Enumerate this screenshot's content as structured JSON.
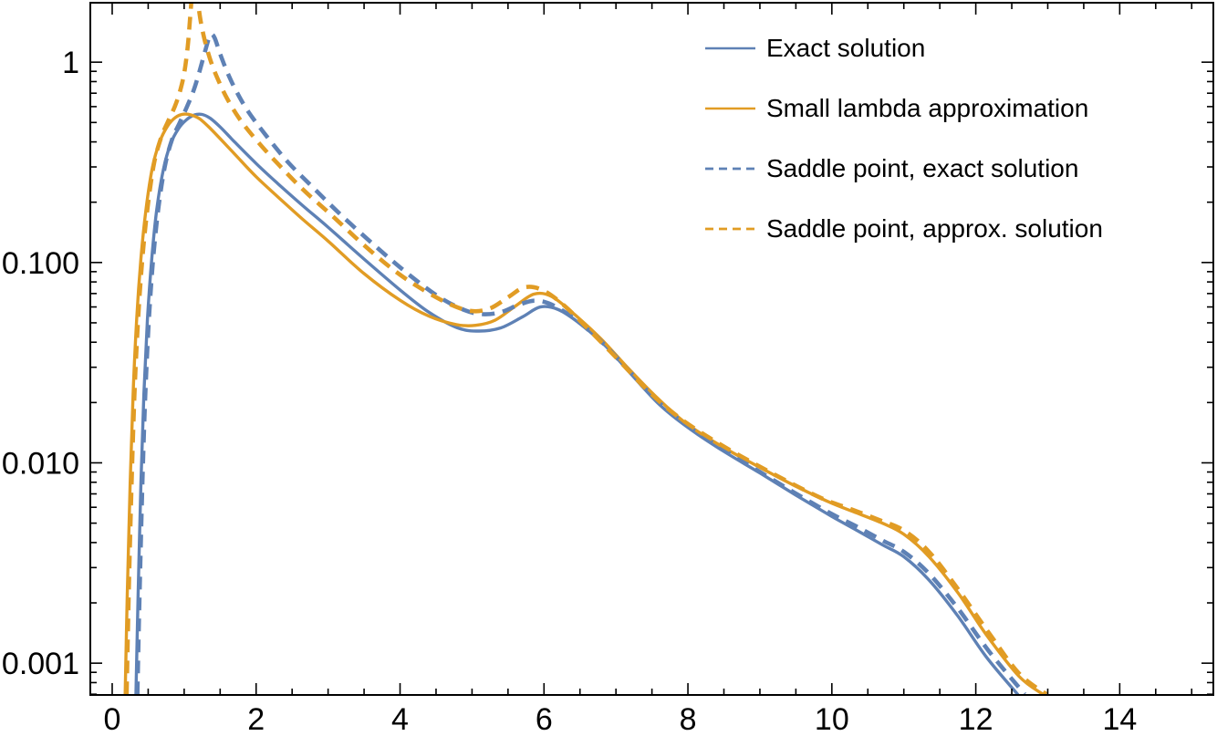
{
  "figure": {
    "background": "#ffffff",
    "frame_color": "#000000"
  },
  "chart_data": {
    "type": "line",
    "title": "",
    "xlabel": "",
    "ylabel": "",
    "scale": {
      "x": "linear",
      "y": "log"
    },
    "xlim": [
      -0.304,
      15.301
    ],
    "ylim": [
      0.000694,
      1.98
    ],
    "grid": false,
    "legend_position": "top-right-inside",
    "x_ticks": {
      "labeled_values": [
        0,
        2,
        4,
        6,
        8,
        10,
        12,
        14
      ],
      "labels": [
        "0",
        "2",
        "4",
        "6",
        "8",
        "10",
        "12",
        "14"
      ],
      "minor_step": 0.5
    },
    "y_ticks": {
      "labeled_values": [
        1,
        0.1,
        0.01,
        0.001
      ],
      "labels": [
        "1",
        "0.100",
        "0.010",
        "0.001"
      ],
      "minor_mantissas": [
        2,
        3,
        4,
        5,
        6,
        7,
        8,
        9
      ]
    },
    "series": [
      {
        "name": "Exact solution",
        "color": "#5e81b5",
        "style": "solid",
        "points": [
          [
            0.33,
            0.0007
          ],
          [
            0.36,
            0.0022
          ],
          [
            0.4,
            0.008
          ],
          [
            0.44,
            0.022
          ],
          [
            0.49,
            0.052
          ],
          [
            0.55,
            0.105
          ],
          [
            0.62,
            0.185
          ],
          [
            0.71,
            0.29
          ],
          [
            0.81,
            0.39
          ],
          [
            0.92,
            0.465
          ],
          [
            1.03,
            0.515
          ],
          [
            1.14,
            0.545
          ],
          [
            1.25,
            0.548
          ],
          [
            1.36,
            0.525
          ],
          [
            1.5,
            0.475
          ],
          [
            1.7,
            0.4
          ],
          [
            2.0,
            0.312
          ],
          [
            2.3,
            0.248
          ],
          [
            2.65,
            0.192
          ],
          [
            3.0,
            0.15
          ],
          [
            3.5,
            0.104
          ],
          [
            4.0,
            0.073
          ],
          [
            4.4,
            0.0565
          ],
          [
            4.8,
            0.0472
          ],
          [
            5.1,
            0.0455
          ],
          [
            5.4,
            0.0472
          ],
          [
            5.7,
            0.0535
          ],
          [
            5.95,
            0.06
          ],
          [
            6.2,
            0.0582
          ],
          [
            6.5,
            0.0495
          ],
          [
            6.85,
            0.0385
          ],
          [
            7.2,
            0.028
          ],
          [
            7.6,
            0.0196
          ],
          [
            8.0,
            0.015
          ],
          [
            8.5,
            0.0114
          ],
          [
            9.0,
            0.0089
          ],
          [
            9.5,
            0.0069
          ],
          [
            10.0,
            0.0054
          ],
          [
            10.35,
            0.0046
          ],
          [
            10.7,
            0.0039
          ],
          [
            11.0,
            0.0034
          ],
          [
            11.35,
            0.0026
          ],
          [
            11.75,
            0.00172
          ],
          [
            12.15,
            0.00107
          ],
          [
            12.58,
            0.0007
          ]
        ]
      },
      {
        "name": "Small lambda approximation",
        "color": "#e19c24",
        "style": "solid",
        "points": [
          [
            0.18,
            0.0007
          ],
          [
            0.21,
            0.0022
          ],
          [
            0.25,
            0.008
          ],
          [
            0.29,
            0.022
          ],
          [
            0.34,
            0.052
          ],
          [
            0.4,
            0.105
          ],
          [
            0.47,
            0.185
          ],
          [
            0.56,
            0.3
          ],
          [
            0.66,
            0.4
          ],
          [
            0.77,
            0.48
          ],
          [
            0.88,
            0.53
          ],
          [
            0.99,
            0.55
          ],
          [
            1.1,
            0.545
          ],
          [
            1.22,
            0.52
          ],
          [
            1.36,
            0.468
          ],
          [
            1.52,
            0.408
          ],
          [
            1.72,
            0.342
          ],
          [
            2.0,
            0.268
          ],
          [
            2.3,
            0.213
          ],
          [
            2.65,
            0.164
          ],
          [
            3.0,
            0.128
          ],
          [
            3.5,
            0.088
          ],
          [
            4.0,
            0.0648
          ],
          [
            4.4,
            0.054
          ],
          [
            4.78,
            0.049
          ],
          [
            5.05,
            0.0486
          ],
          [
            5.32,
            0.0515
          ],
          [
            5.6,
            0.0605
          ],
          [
            5.86,
            0.0695
          ],
          [
            6.1,
            0.0678
          ],
          [
            6.4,
            0.056
          ],
          [
            6.78,
            0.042
          ],
          [
            7.15,
            0.0302
          ],
          [
            7.55,
            0.0215
          ],
          [
            7.95,
            0.016
          ],
          [
            8.45,
            0.0122
          ],
          [
            8.95,
            0.0097
          ],
          [
            9.45,
            0.0078
          ],
          [
            9.95,
            0.0064
          ],
          [
            10.3,
            0.0057
          ],
          [
            10.7,
            0.005
          ],
          [
            11.0,
            0.0044
          ],
          [
            11.35,
            0.0034
          ],
          [
            11.75,
            0.00225
          ],
          [
            12.15,
            0.00138
          ],
          [
            12.6,
            0.00086
          ],
          [
            12.93,
            0.0007
          ]
        ]
      },
      {
        "name": "Saddle point, exact solution",
        "color": "#5e81b5",
        "style": "dashed",
        "points": [
          [
            0.35,
            0.0007
          ],
          [
            0.38,
            0.0022
          ],
          [
            0.42,
            0.008
          ],
          [
            0.46,
            0.022
          ],
          [
            0.51,
            0.052
          ],
          [
            0.57,
            0.105
          ],
          [
            0.64,
            0.185
          ],
          [
            0.73,
            0.3
          ],
          [
            0.83,
            0.41
          ],
          [
            0.94,
            0.5
          ],
          [
            1.04,
            0.6
          ],
          [
            1.13,
            0.72
          ],
          [
            1.21,
            0.89
          ],
          [
            1.29,
            1.13
          ],
          [
            1.36,
            1.36
          ],
          [
            1.42,
            1.33
          ],
          [
            1.5,
            1.1
          ],
          [
            1.6,
            0.89
          ],
          [
            1.73,
            0.71
          ],
          [
            1.9,
            0.56
          ],
          [
            2.15,
            0.425
          ],
          [
            2.45,
            0.315
          ],
          [
            2.8,
            0.235
          ],
          [
            3.2,
            0.17
          ],
          [
            3.7,
            0.117
          ],
          [
            4.15,
            0.0855
          ],
          [
            4.55,
            0.067
          ],
          [
            4.9,
            0.0578
          ],
          [
            5.15,
            0.0552
          ],
          [
            5.4,
            0.0565
          ],
          [
            5.65,
            0.0615
          ],
          [
            5.87,
            0.0645
          ],
          [
            6.1,
            0.0618
          ],
          [
            6.42,
            0.0525
          ],
          [
            6.8,
            0.0402
          ],
          [
            7.18,
            0.0288
          ],
          [
            7.58,
            0.0203
          ],
          [
            7.98,
            0.0154
          ],
          [
            8.48,
            0.0117
          ],
          [
            8.98,
            0.0091
          ],
          [
            9.48,
            0.0071
          ],
          [
            9.98,
            0.0056
          ],
          [
            10.35,
            0.0048
          ],
          [
            10.7,
            0.0041
          ],
          [
            11.0,
            0.0036
          ],
          [
            11.35,
            0.0028
          ],
          [
            11.75,
            0.00188
          ],
          [
            12.18,
            0.00115
          ],
          [
            12.68,
            0.0007
          ]
        ]
      },
      {
        "name": "Saddle point, approx. solution",
        "color": "#e19c24",
        "style": "dashed",
        "points": [
          [
            0.2,
            0.0007
          ],
          [
            0.23,
            0.0022
          ],
          [
            0.27,
            0.008
          ],
          [
            0.31,
            0.022
          ],
          [
            0.36,
            0.052
          ],
          [
            0.42,
            0.105
          ],
          [
            0.49,
            0.185
          ],
          [
            0.58,
            0.31
          ],
          [
            0.68,
            0.42
          ],
          [
            0.78,
            0.51
          ],
          [
            0.87,
            0.6
          ],
          [
            0.94,
            0.71
          ],
          [
            1.0,
            0.88
          ],
          [
            1.05,
            1.2
          ],
          [
            1.09,
            1.8
          ],
          [
            1.13,
            2.6
          ],
          [
            1.18,
            2.1
          ],
          [
            1.23,
            1.6
          ],
          [
            1.29,
            1.27
          ],
          [
            1.37,
            1.01
          ],
          [
            1.47,
            0.82
          ],
          [
            1.6,
            0.655
          ],
          [
            1.78,
            0.515
          ],
          [
            2.02,
            0.402
          ],
          [
            2.32,
            0.306
          ],
          [
            2.67,
            0.228
          ],
          [
            3.05,
            0.172
          ],
          [
            3.5,
            0.122
          ],
          [
            3.95,
            0.0895
          ],
          [
            4.35,
            0.072
          ],
          [
            4.72,
            0.0613
          ],
          [
            5.0,
            0.0572
          ],
          [
            5.25,
            0.059
          ],
          [
            5.5,
            0.067
          ],
          [
            5.73,
            0.0752
          ],
          [
            5.98,
            0.0728
          ],
          [
            6.28,
            0.061
          ],
          [
            6.65,
            0.0452
          ],
          [
            7.05,
            0.0322
          ],
          [
            7.45,
            0.0228
          ],
          [
            7.88,
            0.0168
          ],
          [
            8.38,
            0.0128
          ],
          [
            8.88,
            0.0101
          ],
          [
            9.38,
            0.0081
          ],
          [
            9.88,
            0.0066
          ],
          [
            10.25,
            0.0059
          ],
          [
            10.65,
            0.0052
          ],
          [
            11.0,
            0.0046
          ],
          [
            11.35,
            0.0036
          ],
          [
            11.75,
            0.00235
          ],
          [
            12.18,
            0.00142
          ],
          [
            12.6,
            0.00089
          ],
          [
            12.98,
            0.0007
          ]
        ]
      }
    ]
  },
  "legend": {
    "entries": [
      {
        "label": "Exact solution"
      },
      {
        "label": "Small lambda approximation"
      },
      {
        "label": "Saddle point, exact solution"
      },
      {
        "label": "Saddle point, approx. solution"
      }
    ]
  }
}
